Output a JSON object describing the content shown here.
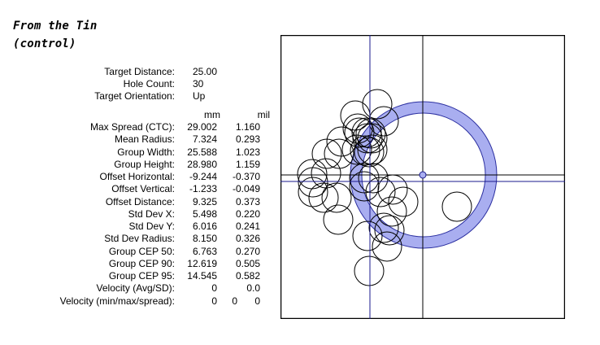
{
  "title_line1": "From the Tin",
  "title_line2": "(control)",
  "summary": [
    {
      "label": "Target Distance:",
      "value": "25.00"
    },
    {
      "label": "Hole Count:",
      "value": "30"
    },
    {
      "label": "Target Orientation:",
      "value": "Up"
    }
  ],
  "stats_headers": {
    "mm": "mm",
    "mil": "mil"
  },
  "stats": [
    {
      "label": "Max Spread (CTC):",
      "mm": "29.002",
      "mil": "1.160"
    },
    {
      "label": "Mean Radius:",
      "mm": "7.324",
      "mil": "0.293"
    },
    {
      "label": "Group Width:",
      "mm": "25.588",
      "mil": "1.023"
    },
    {
      "label": "Group Height:",
      "mm": "28.980",
      "mil": "1.159"
    },
    {
      "label": "Offset Horizontal:",
      "mm": "-9.244",
      "mil": "-0.370"
    },
    {
      "label": "Offset Vertical:",
      "mm": "-1.233",
      "mil": "-0.049"
    },
    {
      "label": "Offset Distance:",
      "mm": "9.325",
      "mil": "0.373"
    },
    {
      "label": "Std Dev X:",
      "mm": "5.498",
      "mil": "0.220"
    },
    {
      "label": "Std Dev Y:",
      "mm": "6.016",
      "mil": "0.241"
    },
    {
      "label": "Std Dev Radius:",
      "mm": "8.150",
      "mil": "0.326"
    },
    {
      "label": "Group CEP 50:",
      "mm": "6.763",
      "mil": "0.270"
    },
    {
      "label": "Group CEP 90:",
      "mm": "12.619",
      "mil": "0.505"
    },
    {
      "label": "Group CEP 95:",
      "mm": "14.545",
      "mil": "0.582"
    },
    {
      "label": "Velocity (Avg/SD):",
      "mm": "0",
      "mil": "0.0"
    }
  ],
  "velocity_minmax": {
    "label": "Velocity (min/max/spread):",
    "min": "0",
    "max": "0",
    "spread": "0"
  },
  "colors": {
    "ring": "#a9aef0",
    "ring_stroke": "#2b2fa0",
    "axis": "#1a1a8c",
    "hole": "#000000"
  },
  "target_plot": {
    "hole_count": 30,
    "holes_plotted": 30,
    "cep_ring_radius_mm": 12.619,
    "group_center_mm": [
      -9.244,
      -1.233
    ]
  }
}
